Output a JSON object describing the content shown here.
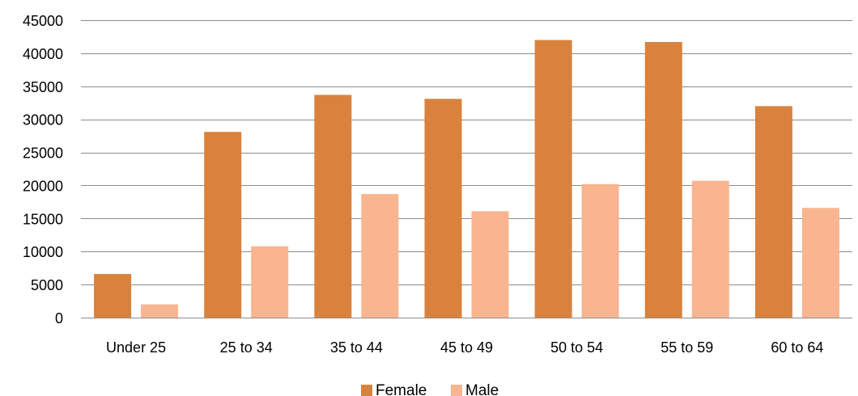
{
  "chart_data": {
    "type": "bar",
    "categories": [
      "Under 25",
      "25 to 34",
      "35 to 44",
      "45 to 49",
      "50 to 54",
      "55 to 59",
      "60 to 64"
    ],
    "series": [
      {
        "name": "Female",
        "color": "#D9823D",
        "values": [
          6600,
          28100,
          33700,
          33100,
          42000,
          41700,
          32000
        ]
      },
      {
        "name": "Male",
        "color": "#F8B590",
        "values": [
          2000,
          10800,
          18700,
          16100,
          20200,
          20700,
          16600
        ]
      }
    ],
    "ylim": [
      0,
      45000
    ],
    "yticks": [
      0,
      5000,
      10000,
      15000,
      20000,
      25000,
      30000,
      35000,
      40000,
      45000
    ],
    "grid": true,
    "legend": "bottom-center",
    "title": "",
    "xlabel": "",
    "ylabel": ""
  }
}
